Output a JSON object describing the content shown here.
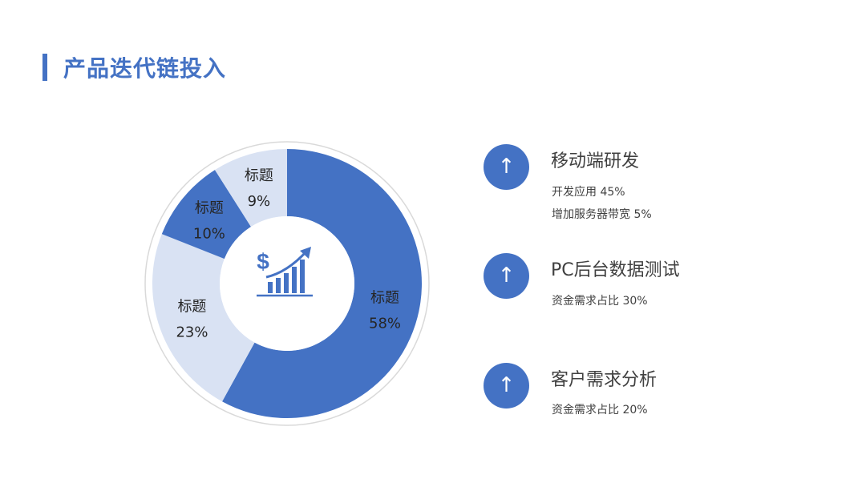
{
  "page": {
    "title": "产品迭代链投入",
    "accent_color": "#4472C4",
    "light_color": "#D9E2F3"
  },
  "center_icon": "dollar-growth-bar-icon",
  "chart_data": {
    "type": "pie",
    "variant": "donut",
    "slices": [
      {
        "label": "标题",
        "value": 58,
        "value_label": "58%",
        "color": "#4472C4"
      },
      {
        "label": "标题",
        "value": 23,
        "value_label": "23%",
        "color": "#D9E2F3"
      },
      {
        "label": "标题",
        "value": 10,
        "value_label": "10%",
        "color": "#4472C4"
      },
      {
        "label": "标题",
        "value": 9,
        "value_label": "9%",
        "color": "#D9E2F3"
      }
    ]
  },
  "items": [
    {
      "icon": "arrow-up-icon",
      "arrow": "↑",
      "title": "移动端研发",
      "lines": [
        "开发应用   45%",
        "增加服务器带宽   5%"
      ]
    },
    {
      "icon": "arrow-up-icon",
      "arrow": "↑",
      "title": "PC后台数据测试",
      "lines": [
        "资金需求占比 30%"
      ]
    },
    {
      "icon": "arrow-up-icon",
      "arrow": "↑",
      "title": "客户需求分析",
      "lines": [
        "资金需求占比 20%"
      ]
    }
  ]
}
